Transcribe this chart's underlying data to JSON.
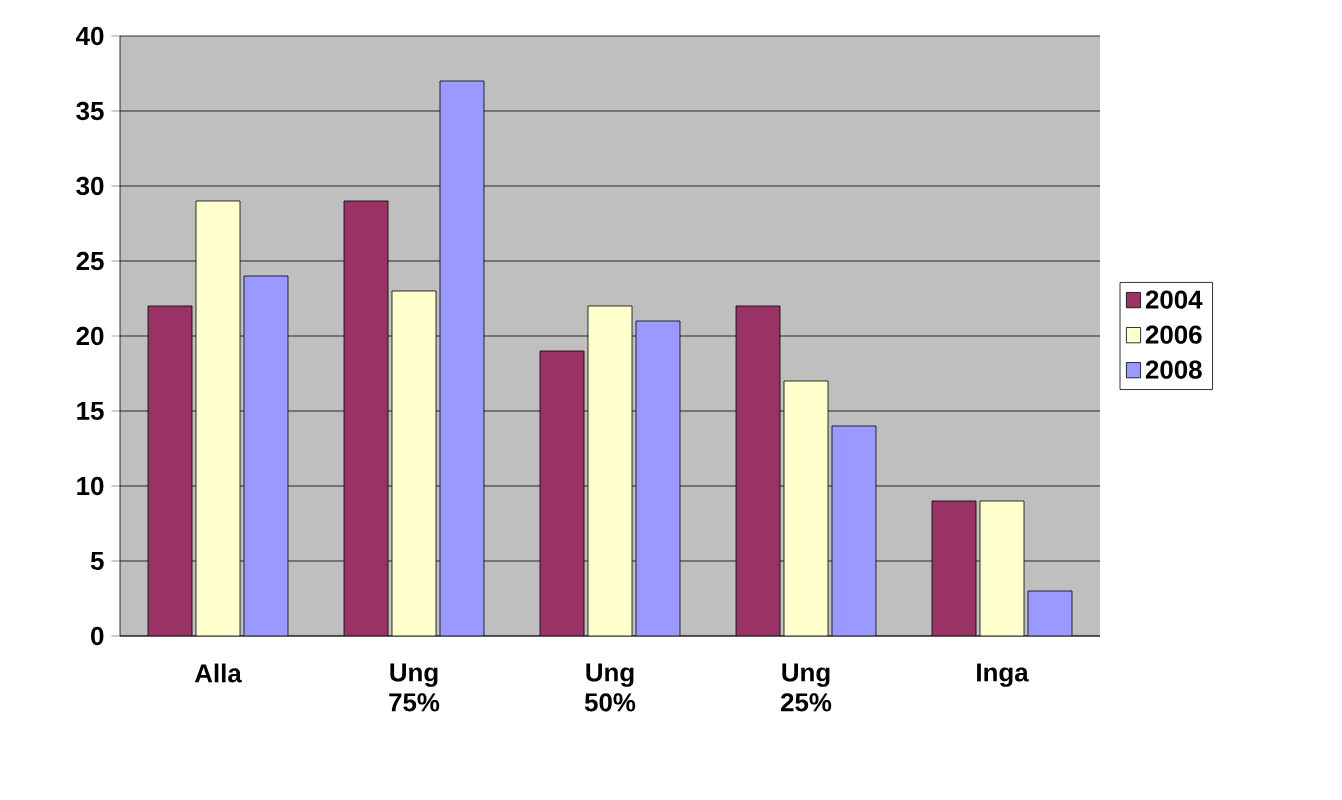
{
  "chart_data": {
    "type": "bar",
    "categories": [
      "Alla",
      "Ung 75%",
      "Ung 50%",
      "Ung 25%",
      "Inga"
    ],
    "series": [
      {
        "name": "2004",
        "color": "#993366",
        "values": [
          22,
          29,
          19,
          22,
          9
        ]
      },
      {
        "name": "2006",
        "color": "#ffffcc",
        "values": [
          29,
          23,
          22,
          17,
          9
        ]
      },
      {
        "name": "2008",
        "color": "#9999ff",
        "values": [
          24,
          37,
          21,
          14,
          3
        ]
      }
    ],
    "ylim": [
      0,
      40
    ],
    "yticks": [
      0,
      5,
      10,
      15,
      20,
      25,
      30,
      35,
      40
    ],
    "grid": "y",
    "legend": "right"
  }
}
